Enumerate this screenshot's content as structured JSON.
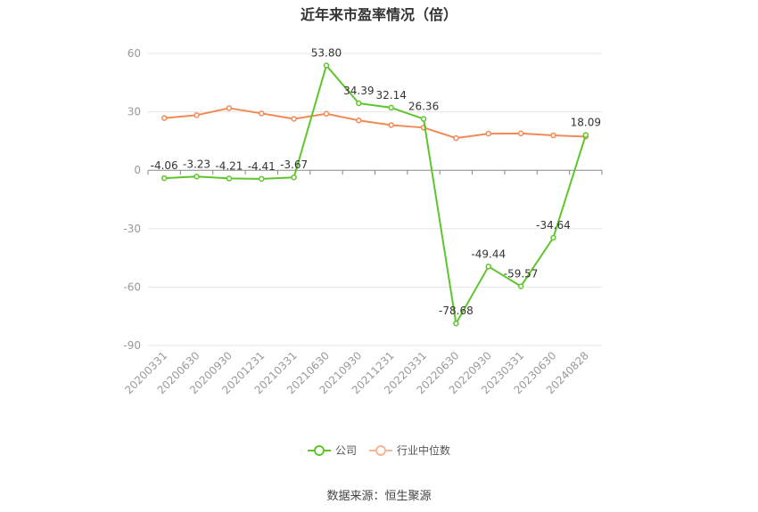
{
  "chart_data": {
    "type": "line",
    "title": "近年来市盈率情况（倍）",
    "categories": [
      "20200331",
      "20200630",
      "20200930",
      "20201231",
      "20210331",
      "20210630",
      "20210930",
      "20211231",
      "20220331",
      "20220630",
      "20220930",
      "20230331",
      "20230630",
      "20240828"
    ],
    "ylim": [
      -90,
      60
    ],
    "yticks": [
      60,
      30,
      0,
      -30,
      -60,
      -90
    ],
    "grid": true,
    "legend_position": "bottom",
    "series": [
      {
        "name": "公司",
        "color": "#5ec52c",
        "values": [
          -4.06,
          -3.23,
          -4.21,
          -4.41,
          -3.67,
          53.8,
          34.39,
          32.14,
          26.36,
          -78.68,
          -49.44,
          -59.57,
          -34.64,
          18.09
        ],
        "labels": [
          "-4.06",
          "-3.23",
          "-4.21",
          "-4.41",
          "-3.67",
          "53.80",
          "34.39",
          "32.14",
          "26.36",
          "-78.68",
          "-49.44",
          "-59.57",
          "-34.64",
          "18.09"
        ]
      },
      {
        "name": "行业中位数",
        "color": "#f28a55",
        "values": [
          26.8,
          28.3,
          31.9,
          29.2,
          26.4,
          29.0,
          25.6,
          23.2,
          21.9,
          16.5,
          18.8,
          18.9,
          17.9,
          17.3
        ]
      }
    ]
  },
  "source": "数据来源：恒生聚源"
}
